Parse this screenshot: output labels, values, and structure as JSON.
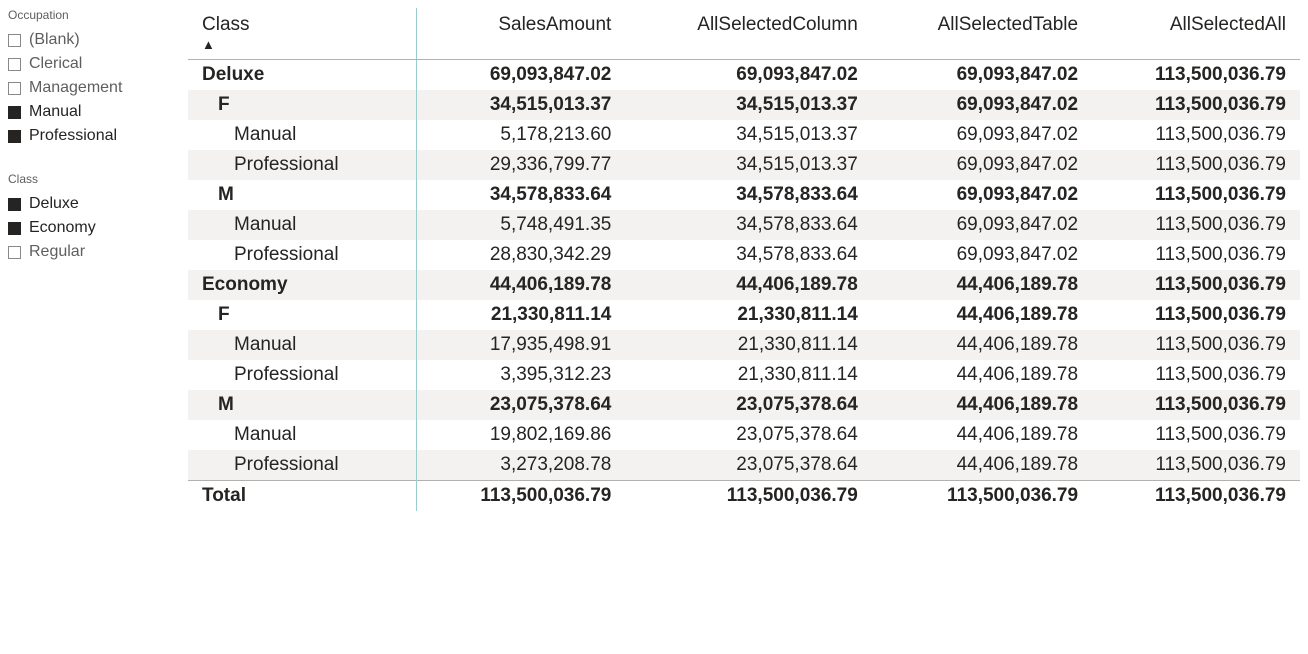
{
  "slicers": [
    {
      "title": "Occupation",
      "items": [
        {
          "label": "(Blank)",
          "selected": false
        },
        {
          "label": "Clerical",
          "selected": false
        },
        {
          "label": "Management",
          "selected": false
        },
        {
          "label": "Manual",
          "selected": true
        },
        {
          "label": "Professional",
          "selected": true
        }
      ]
    },
    {
      "title": "Class",
      "items": [
        {
          "label": "Deluxe",
          "selected": true
        },
        {
          "label": "Economy",
          "selected": true
        },
        {
          "label": "Regular",
          "selected": false
        }
      ]
    }
  ],
  "matrix": {
    "columns": [
      {
        "label": "Class",
        "sorted": true
      },
      {
        "label": "SalesAmount"
      },
      {
        "label": "AllSelectedColumn"
      },
      {
        "label": "AllSelectedTable"
      },
      {
        "label": "AllSelectedAll"
      }
    ],
    "rows": [
      {
        "indent": 0,
        "bold": true,
        "shade": false,
        "label": "Deluxe",
        "values": [
          "69,093,847.02",
          "69,093,847.02",
          "69,093,847.02",
          "113,500,036.79"
        ]
      },
      {
        "indent": 1,
        "bold": true,
        "shade": true,
        "label": "F",
        "values": [
          "34,515,013.37",
          "34,515,013.37",
          "69,093,847.02",
          "113,500,036.79"
        ]
      },
      {
        "indent": 2,
        "bold": false,
        "shade": false,
        "label": "Manual",
        "values": [
          "5,178,213.60",
          "34,515,013.37",
          "69,093,847.02",
          "113,500,036.79"
        ]
      },
      {
        "indent": 2,
        "bold": false,
        "shade": true,
        "label": "Professional",
        "values": [
          "29,336,799.77",
          "34,515,013.37",
          "69,093,847.02",
          "113,500,036.79"
        ]
      },
      {
        "indent": 1,
        "bold": true,
        "shade": false,
        "label": "M",
        "values": [
          "34,578,833.64",
          "34,578,833.64",
          "69,093,847.02",
          "113,500,036.79"
        ]
      },
      {
        "indent": 2,
        "bold": false,
        "shade": true,
        "label": "Manual",
        "values": [
          "5,748,491.35",
          "34,578,833.64",
          "69,093,847.02",
          "113,500,036.79"
        ]
      },
      {
        "indent": 2,
        "bold": false,
        "shade": false,
        "label": "Professional",
        "values": [
          "28,830,342.29",
          "34,578,833.64",
          "69,093,847.02",
          "113,500,036.79"
        ]
      },
      {
        "indent": 0,
        "bold": true,
        "shade": true,
        "label": "Economy",
        "values": [
          "44,406,189.78",
          "44,406,189.78",
          "44,406,189.78",
          "113,500,036.79"
        ]
      },
      {
        "indent": 1,
        "bold": true,
        "shade": false,
        "label": "F",
        "values": [
          "21,330,811.14",
          "21,330,811.14",
          "44,406,189.78",
          "113,500,036.79"
        ]
      },
      {
        "indent": 2,
        "bold": false,
        "shade": true,
        "label": "Manual",
        "values": [
          "17,935,498.91",
          "21,330,811.14",
          "44,406,189.78",
          "113,500,036.79"
        ]
      },
      {
        "indent": 2,
        "bold": false,
        "shade": false,
        "label": "Professional",
        "values": [
          "3,395,312.23",
          "21,330,811.14",
          "44,406,189.78",
          "113,500,036.79"
        ]
      },
      {
        "indent": 1,
        "bold": true,
        "shade": true,
        "label": "M",
        "values": [
          "23,075,378.64",
          "23,075,378.64",
          "44,406,189.78",
          "113,500,036.79"
        ]
      },
      {
        "indent": 2,
        "bold": false,
        "shade": false,
        "label": "Manual",
        "values": [
          "19,802,169.86",
          "23,075,378.64",
          "44,406,189.78",
          "113,500,036.79"
        ]
      },
      {
        "indent": 2,
        "bold": false,
        "shade": true,
        "label": "Professional",
        "values": [
          "3,273,208.78",
          "23,075,378.64",
          "44,406,189.78",
          "113,500,036.79"
        ]
      }
    ],
    "total": {
      "label": "Total",
      "values": [
        "113,500,036.79",
        "113,500,036.79",
        "113,500,036.79",
        "113,500,036.79"
      ]
    }
  },
  "style": {
    "shade_color": "#f3f2f1",
    "border_color": "#b3b0ad",
    "rowhead_border_color": "#9ccbce",
    "text_color": "#252423",
    "muted_text_color": "#605e5c"
  }
}
